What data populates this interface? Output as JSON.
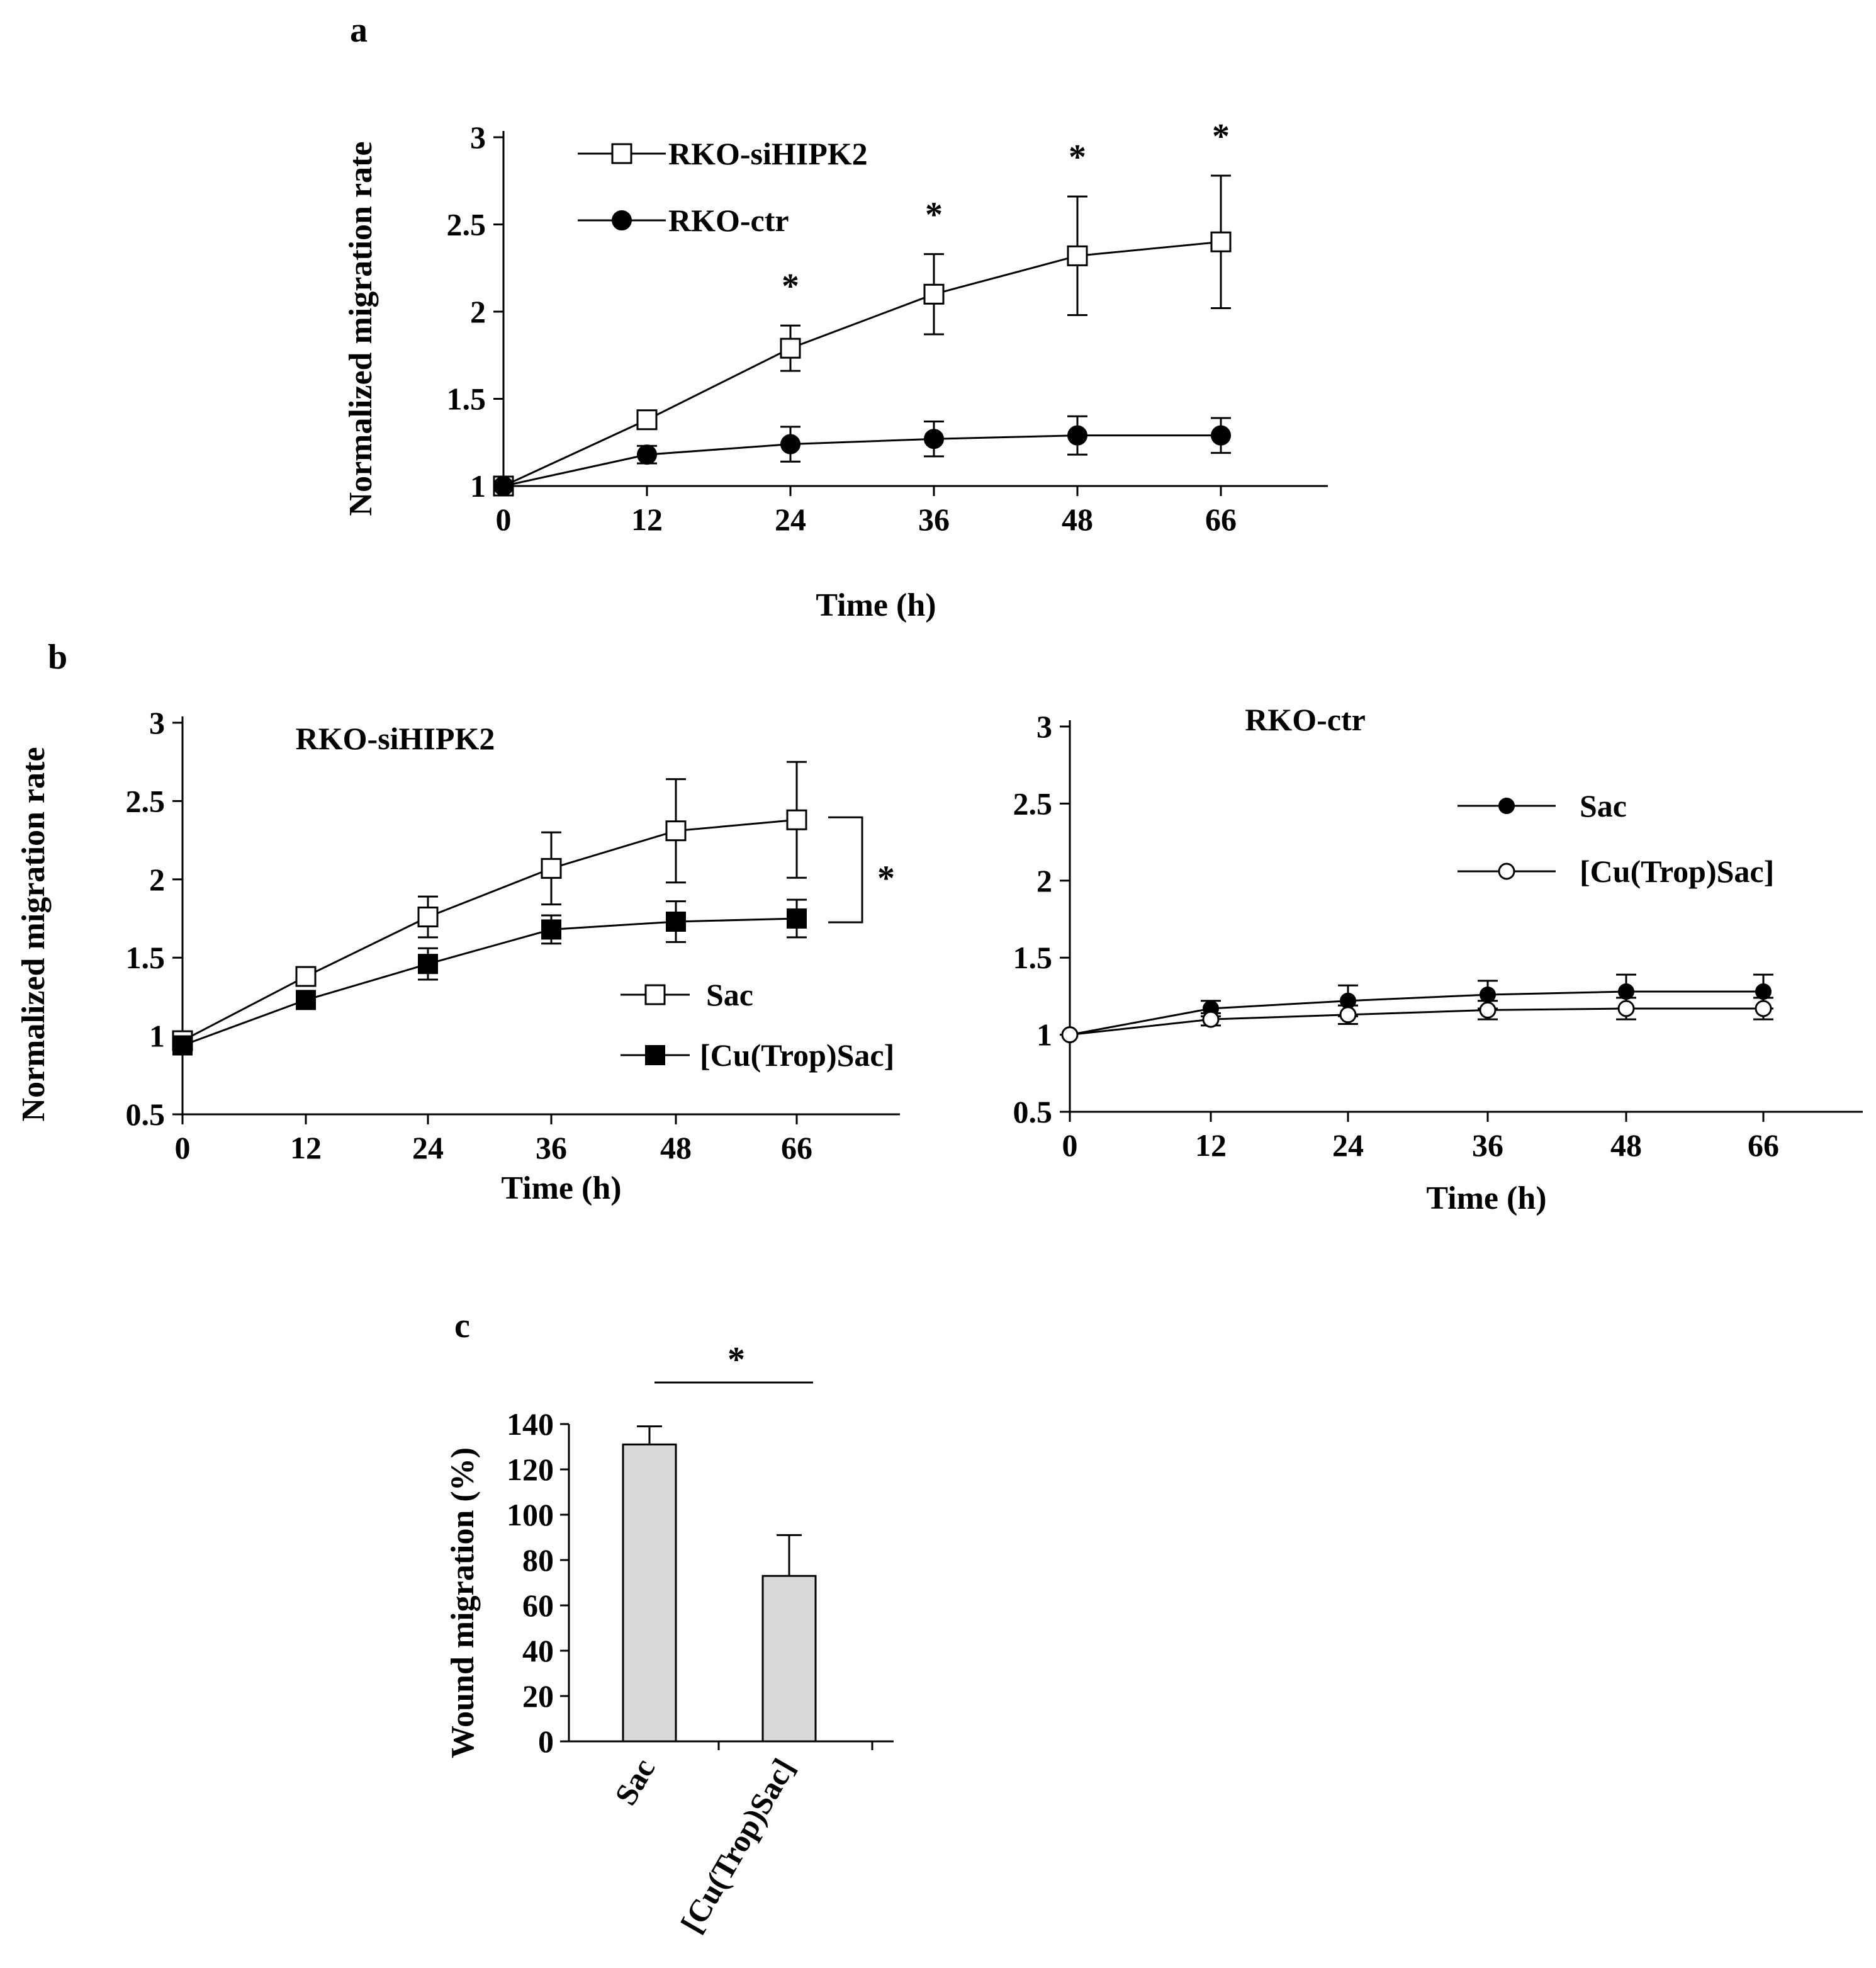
{
  "figure": {
    "panel_labels": {
      "a": "a",
      "b": "b",
      "c": "c"
    },
    "significance_marker": "*"
  },
  "chart_data": [
    {
      "id": "a",
      "type": "line",
      "title": "",
      "xlabel": "Time (h)",
      "ylabel": "Normalized migration rate",
      "categories": [
        "0",
        "12",
        "24",
        "36",
        "48",
        "66"
      ],
      "ylim": [
        1,
        3
      ],
      "yticks": [
        "1",
        "1.5",
        "2",
        "2.5",
        "3"
      ],
      "series": [
        {
          "name": "RKO-siHIPK2",
          "marker": "open-square",
          "values": [
            1.0,
            1.38,
            1.79,
            2.1,
            2.32,
            2.4
          ],
          "errors": [
            0.0,
            0.03,
            0.13,
            0.23,
            0.34,
            0.38
          ]
        },
        {
          "name": "RKO-ctr",
          "marker": "filled-circle",
          "values": [
            1.0,
            1.18,
            1.24,
            1.27,
            1.29,
            1.29
          ],
          "errors": [
            0.0,
            0.05,
            0.1,
            0.1,
            0.11,
            0.1
          ]
        }
      ],
      "annotations": [
        {
          "text": "*",
          "at": "24"
        },
        {
          "text": "*",
          "at": "36"
        },
        {
          "text": "*",
          "at": "48"
        },
        {
          "text": "*",
          "at": "66"
        }
      ]
    },
    {
      "id": "b-left",
      "type": "line",
      "title": "RKO-siHIPK2",
      "xlabel": "Time (h)",
      "ylabel": "Normalized migration rate",
      "categories": [
        "0",
        "12",
        "24",
        "36",
        "48",
        "66"
      ],
      "ylim": [
        0.5,
        3
      ],
      "yticks": [
        "0.5",
        "1",
        "1.5",
        "2",
        "2.5",
        "3"
      ],
      "series": [
        {
          "name": "Sac",
          "marker": "open-square",
          "values": [
            0.97,
            1.38,
            1.76,
            2.07,
            2.31,
            2.38
          ],
          "errors": [
            0.0,
            0.03,
            0.13,
            0.23,
            0.33,
            0.37
          ]
        },
        {
          "name": "[Cu(Trop)Sac]",
          "marker": "filled-square",
          "values": [
            0.94,
            1.23,
            1.46,
            1.68,
            1.73,
            1.75
          ],
          "errors": [
            0.0,
            0.03,
            0.1,
            0.09,
            0.13,
            0.12
          ]
        }
      ],
      "annotations": [
        {
          "text": "*",
          "at": "66",
          "bracket": true
        }
      ]
    },
    {
      "id": "b-right",
      "type": "line",
      "title": "RKO-ctr",
      "xlabel": "Time (h)",
      "ylabel": "",
      "categories": [
        "0",
        "12",
        "24",
        "36",
        "48",
        "66"
      ],
      "ylim": [
        0.5,
        3
      ],
      "yticks": [
        "0.5",
        "1",
        "1.5",
        "2",
        "2.5",
        "3"
      ],
      "series": [
        {
          "name": "Sac",
          "marker": "filled-circle",
          "values": [
            1.0,
            1.17,
            1.22,
            1.26,
            1.28,
            1.28
          ],
          "errors": [
            0.0,
            0.05,
            0.1,
            0.09,
            0.11,
            0.11
          ]
        },
        {
          "name": "[Cu(Trop)Sac]",
          "marker": "open-circle",
          "values": [
            1.0,
            1.1,
            1.13,
            1.16,
            1.17,
            1.17
          ],
          "errors": [
            0.0,
            0.04,
            0.06,
            0.06,
            0.07,
            0.07
          ]
        }
      ]
    },
    {
      "id": "c",
      "type": "bar",
      "title": "",
      "xlabel": "",
      "ylabel": "Wound migration (%)",
      "categories": [
        "Sac",
        "[Cu(Trop)Sac]"
      ],
      "values": [
        131,
        73
      ],
      "errors": [
        8,
        18
      ],
      "ylim": [
        0,
        140
      ],
      "yticks": [
        "0",
        "20",
        "40",
        "60",
        "80",
        "100",
        "120",
        "140"
      ],
      "bar_color": "#d9d9d9",
      "annotations": [
        {
          "text": "*",
          "between": [
            "Sac",
            "[Cu(Trop)Sac]"
          ]
        }
      ]
    }
  ]
}
